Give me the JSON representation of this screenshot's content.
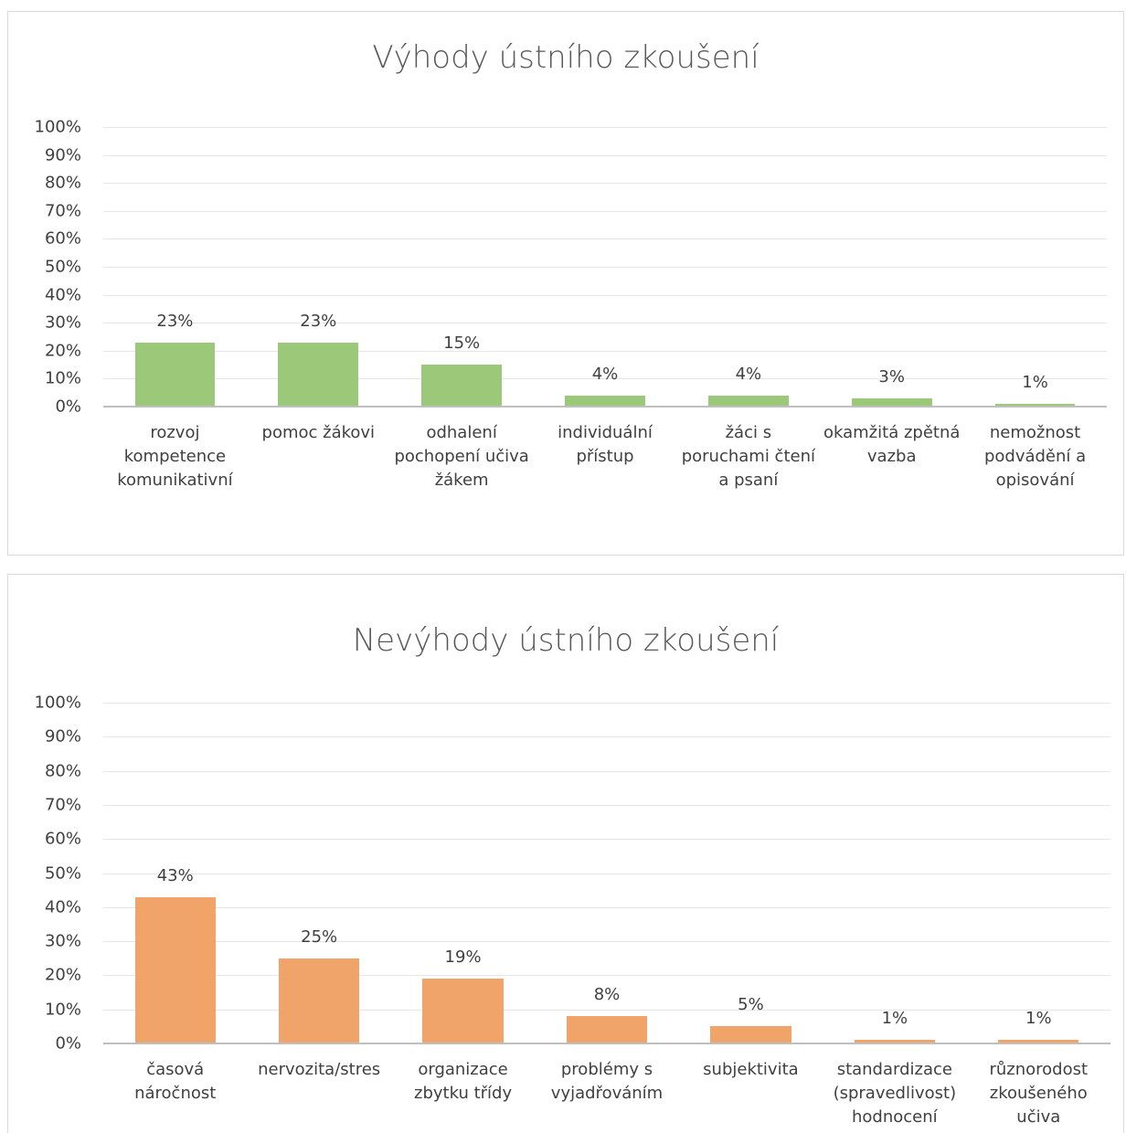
{
  "chart_data": [
    {
      "type": "bar",
      "title": "Výhody ústního zkoušení",
      "categories": [
        "rozvoj kompetence komunikativní",
        "pomoc žákovi",
        "odhalení pochopení učiva žákem",
        "individuální přístup",
        "žáci s poruchami čtení a psaní",
        "okamžitá zpětná vazba",
        "nemožnost podvádění a opisování"
      ],
      "values": [
        23,
        23,
        15,
        4,
        4,
        3,
        1
      ],
      "value_labels": [
        "23%",
        "23%",
        "15%",
        "4%",
        "4%",
        "3%",
        "1%"
      ],
      "color": "#9cc87a",
      "ylim": [
        0,
        100
      ],
      "yticks": [
        {
          "value": 0,
          "label": "0%"
        },
        {
          "value": 10,
          "label": "10%"
        },
        {
          "value": 20,
          "label": "20%"
        },
        {
          "value": 30,
          "label": "30%"
        },
        {
          "value": 40,
          "label": "40%"
        },
        {
          "value": 50,
          "label": "50%"
        },
        {
          "value": 60,
          "label": "60%"
        },
        {
          "value": 70,
          "label": "70%"
        },
        {
          "value": 80,
          "label": "80%"
        },
        {
          "value": 90,
          "label": "90%"
        },
        {
          "value": 100,
          "label": "100%"
        }
      ],
      "grid": true
    },
    {
      "type": "bar",
      "title": "Nevýhody ústního zkoušení",
      "categories": [
        "časová náročnost",
        "nervozita/stres",
        "organizace zbytku třídy",
        "problémy s vyjadřováním",
        "subjektivita",
        "standardizace (spravedlivost) hodnocení",
        "různorodost zkoušeného učiva"
      ],
      "values": [
        43,
        25,
        19,
        8,
        5,
        1,
        1
      ],
      "value_labels": [
        "43%",
        "25%",
        "19%",
        "8%",
        "5%",
        "1%",
        "1%"
      ],
      "color": "#f0a469",
      "ylim": [
        0,
        100
      ],
      "yticks": [
        {
          "value": 0,
          "label": "0%"
        },
        {
          "value": 10,
          "label": "10%"
        },
        {
          "value": 20,
          "label": "20%"
        },
        {
          "value": 30,
          "label": "30%"
        },
        {
          "value": 40,
          "label": "40%"
        },
        {
          "value": 50,
          "label": "50%"
        },
        {
          "value": 60,
          "label": "60%"
        },
        {
          "value": 70,
          "label": "70%"
        },
        {
          "value": 80,
          "label": "80%"
        },
        {
          "value": 90,
          "label": "90%"
        },
        {
          "value": 100,
          "label": "100%"
        }
      ],
      "grid": true
    }
  ]
}
